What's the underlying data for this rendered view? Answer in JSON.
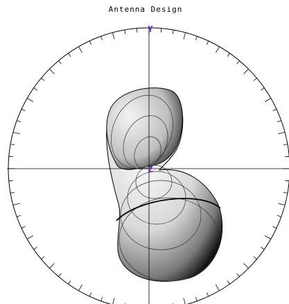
{
  "title": "Antenna Design",
  "axes": {
    "vertical_label": "Y",
    "center_label": "Z"
  }
}
